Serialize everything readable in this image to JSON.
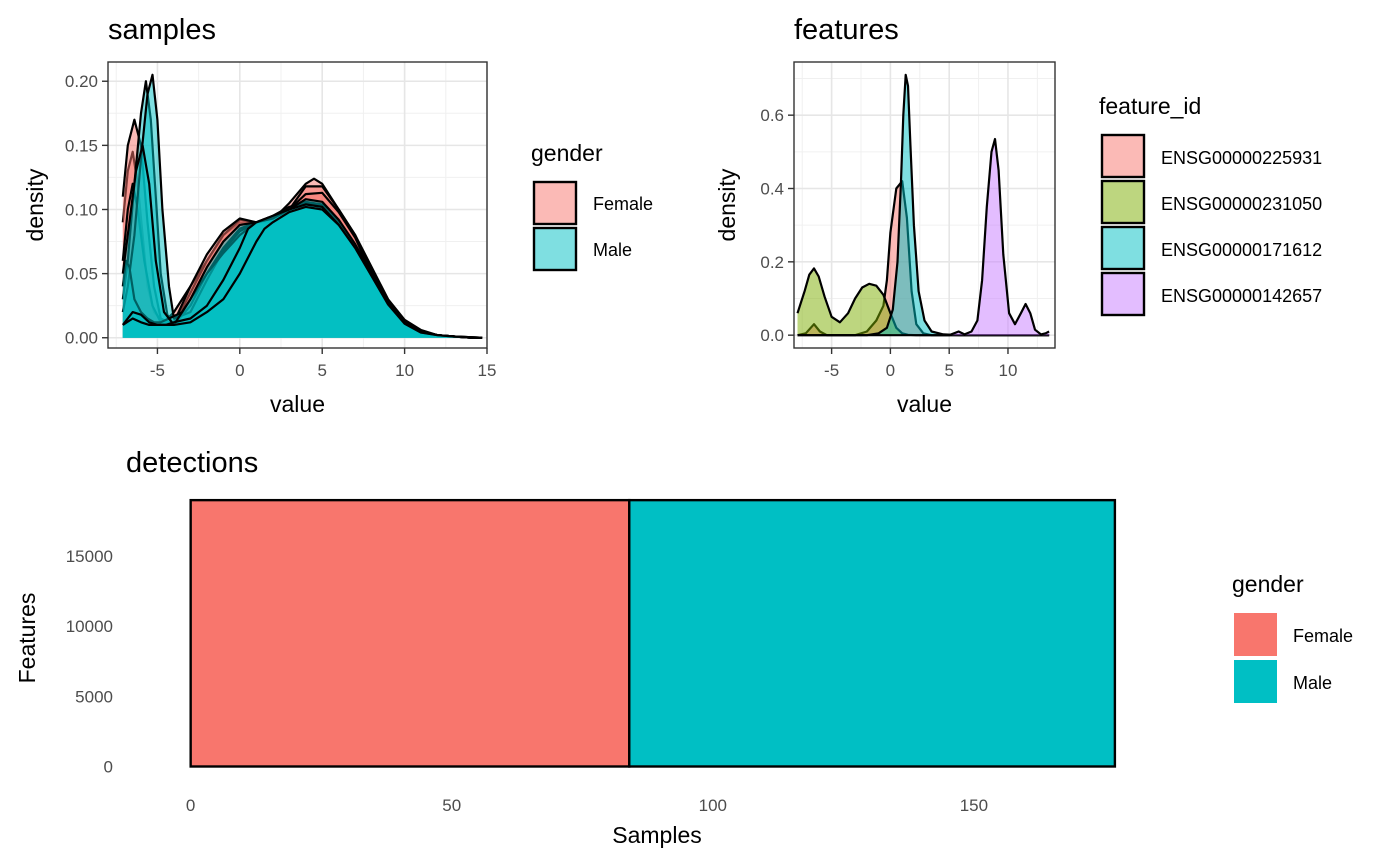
{
  "chart_data": [
    {
      "id": "samples",
      "type": "area",
      "title": "samples",
      "xlabel": "value",
      "ylabel": "density",
      "xlim": [
        -8,
        15
      ],
      "ylim": [
        -0.008,
        0.215
      ],
      "xticks": [
        -5,
        0,
        5,
        10,
        15
      ],
      "yticks": [
        0.0,
        0.05,
        0.1,
        0.15,
        0.2
      ],
      "ytick_labels": [
        "0.00",
        "0.05",
        "0.10",
        "0.15",
        "0.20"
      ],
      "grid": true,
      "legend": {
        "title": "gender",
        "placement": "right",
        "entries": [
          "Female",
          "Male"
        ]
      },
      "series": [
        {
          "group": "Female",
          "x": [
            -7.1,
            -6.8,
            -6.5,
            -6.2,
            -5.9,
            -5.6,
            -5.2,
            -4.6,
            -4,
            -3,
            -2,
            -1,
            0,
            1,
            2,
            3,
            4,
            4.5,
            5,
            6,
            7,
            8,
            9,
            10,
            11,
            12,
            13,
            14,
            14.7
          ],
          "y": [
            0.09,
            0.13,
            0.145,
            0.12,
            0.08,
            0.04,
            0.02,
            0.012,
            0.02,
            0.04,
            0.06,
            0.08,
            0.09,
            0.089,
            0.092,
            0.105,
            0.12,
            0.124,
            0.12,
            0.1,
            0.08,
            0.055,
            0.03,
            0.014,
            0.006,
            0.002,
            0.001,
            0,
            0
          ]
        },
        {
          "group": "Female",
          "x": [
            -7.1,
            -6.8,
            -6.4,
            -6,
            -5.6,
            -5.2,
            -4.8,
            -4,
            -3,
            -2,
            -1,
            0,
            1,
            2,
            3,
            4,
            5,
            6,
            7,
            8,
            9,
            10,
            11,
            12,
            13,
            14,
            14.7
          ],
          "y": [
            0.11,
            0.15,
            0.17,
            0.15,
            0.09,
            0.04,
            0.015,
            0.01,
            0.035,
            0.06,
            0.08,
            0.092,
            0.09,
            0.09,
            0.1,
            0.118,
            0.118,
            0.1,
            0.08,
            0.052,
            0.028,
            0.012,
            0.005,
            0.002,
            0.001,
            0,
            0
          ]
        },
        {
          "group": "Female",
          "x": [
            -7.1,
            -6.8,
            -6.5,
            -6.2,
            -5.8,
            -5.3,
            -4.8,
            -4,
            -3,
            -2,
            -1,
            0,
            1,
            2,
            3,
            4,
            5,
            6,
            7,
            8,
            9,
            10,
            11,
            12,
            13,
            14.7
          ],
          "y": [
            0.06,
            0.1,
            0.12,
            0.1,
            0.06,
            0.025,
            0.012,
            0.012,
            0.04,
            0.065,
            0.083,
            0.093,
            0.09,
            0.09,
            0.1,
            0.112,
            0.113,
            0.098,
            0.078,
            0.05,
            0.026,
            0.011,
            0.004,
            0.002,
            0.001,
            0
          ]
        },
        {
          "group": "Male",
          "x": [
            -7.1,
            -6.8,
            -6.4,
            -6,
            -5.7,
            -5.4,
            -5.1,
            -4.8,
            -4.4,
            -4,
            -3,
            -2,
            -1,
            0,
            1,
            2,
            3,
            4,
            5,
            6,
            7,
            8,
            9,
            10,
            11,
            12,
            13,
            14,
            14.7
          ],
          "y": [
            0.03,
            0.06,
            0.12,
            0.175,
            0.2,
            0.17,
            0.11,
            0.05,
            0.018,
            0.01,
            0.025,
            0.05,
            0.07,
            0.085,
            0.09,
            0.095,
            0.102,
            0.106,
            0.104,
            0.09,
            0.072,
            0.05,
            0.028,
            0.012,
            0.005,
            0.002,
            0.001,
            0,
            0
          ]
        },
        {
          "group": "Male",
          "x": [
            -7.1,
            -6.8,
            -6.4,
            -6,
            -5.6,
            -5.3,
            -5,
            -4.7,
            -4.3,
            -4,
            -3,
            -2,
            -1,
            0,
            1,
            2,
            3,
            4,
            5,
            6,
            7,
            8,
            9,
            10,
            11,
            12,
            13,
            14,
            14.7
          ],
          "y": [
            0.02,
            0.04,
            0.08,
            0.14,
            0.19,
            0.205,
            0.17,
            0.1,
            0.04,
            0.015,
            0.02,
            0.045,
            0.068,
            0.083,
            0.09,
            0.094,
            0.1,
            0.105,
            0.103,
            0.09,
            0.071,
            0.05,
            0.028,
            0.012,
            0.005,
            0.002,
            0.001,
            0,
            0
          ]
        },
        {
          "group": "Male",
          "x": [
            -7.1,
            -6.9,
            -6.7,
            -6.4,
            -6,
            -5.6,
            -5.2,
            -4.8,
            -4.3,
            -3.5,
            -3,
            -2,
            -1,
            0,
            1,
            2,
            3,
            4,
            5,
            6,
            7,
            8,
            9,
            10,
            11,
            12,
            13,
            14,
            14.7
          ],
          "y": [
            0.04,
            0.06,
            0.055,
            0.03,
            0.02,
            0.015,
            0.012,
            0.012,
            0.015,
            0.02,
            0.03,
            0.05,
            0.066,
            0.08,
            0.09,
            0.095,
            0.1,
            0.104,
            0.102,
            0.09,
            0.072,
            0.05,
            0.028,
            0.012,
            0.005,
            0.002,
            0.001,
            0,
            0
          ]
        },
        {
          "group": "Male",
          "x": [
            -7.1,
            -6.7,
            -6.3,
            -5.9,
            -5.5,
            -5.1,
            -4.6,
            -4,
            -3,
            -2,
            -1,
            0,
            1,
            2,
            3,
            4,
            5,
            6,
            7,
            8,
            9,
            10,
            11,
            12,
            13,
            14,
            14.7
          ],
          "y": [
            0.05,
            0.09,
            0.13,
            0.15,
            0.12,
            0.06,
            0.02,
            0.01,
            0.03,
            0.055,
            0.075,
            0.088,
            0.09,
            0.093,
            0.1,
            0.108,
            0.106,
            0.092,
            0.073,
            0.05,
            0.027,
            0.012,
            0.005,
            0.002,
            0.001,
            0,
            0
          ]
        },
        {
          "group": "Male",
          "x": [
            -7.1,
            -6.5,
            -6,
            -5.5,
            -5,
            -4.5,
            -4,
            -3,
            -2,
            -1,
            0,
            0.5,
            1,
            2,
            3,
            4,
            5,
            6,
            7,
            8,
            9,
            10,
            11,
            12,
            13,
            14.7
          ],
          "y": [
            0.01,
            0.02,
            0.018,
            0.012,
            0.01,
            0.01,
            0.012,
            0.015,
            0.025,
            0.045,
            0.07,
            0.085,
            0.09,
            0.095,
            0.1,
            0.104,
            0.102,
            0.088,
            0.07,
            0.048,
            0.026,
            0.011,
            0.004,
            0.002,
            0.001,
            0
          ]
        },
        {
          "group": "Male",
          "x": [
            -7.1,
            -6.5,
            -6,
            -5.5,
            -5,
            -4.5,
            -4,
            -3,
            -2,
            -1,
            0,
            1,
            1.5,
            2,
            3,
            4,
            5,
            6,
            7,
            8,
            9,
            10,
            11,
            12,
            13,
            14.7
          ],
          "y": [
            0.01,
            0.015,
            0.012,
            0.01,
            0.01,
            0.01,
            0.01,
            0.012,
            0.02,
            0.03,
            0.05,
            0.075,
            0.085,
            0.09,
            0.098,
            0.102,
            0.1,
            0.088,
            0.07,
            0.048,
            0.026,
            0.011,
            0.004,
            0.002,
            0.001,
            0
          ]
        }
      ]
    },
    {
      "id": "features",
      "type": "area",
      "title": "features",
      "xlabel": "value",
      "ylabel": "density",
      "xlim": [
        -8.2,
        14
      ],
      "ylim": [
        -0.035,
        0.745
      ],
      "xticks": [
        -5,
        0,
        5,
        10
      ],
      "yticks": [
        0.0,
        0.2,
        0.4,
        0.6
      ],
      "ytick_labels": [
        "0.0",
        "0.2",
        "0.4",
        "0.6"
      ],
      "grid": true,
      "legend": {
        "title": "feature_id",
        "placement": "right",
        "entries": [
          "ENSG00000225931",
          "ENSG00000231050",
          "ENSG00000171612",
          "ENSG00000142657"
        ]
      },
      "series": [
        {
          "name": "ENSG00000225931",
          "x": [
            -7.9,
            -7.2,
            -6.5,
            -6,
            -5.4,
            -4.5,
            -3,
            -2,
            -1.2,
            -0.6,
            -0.3,
            0,
            0.5,
            1,
            1.4,
            1.8,
            2.2,
            2.8,
            3.5,
            4.5,
            6,
            8,
            10,
            12,
            13.5
          ],
          "y": [
            0,
            0.005,
            0.03,
            0.01,
            0,
            0,
            0,
            0.01,
            0.04,
            0.08,
            0.15,
            0.28,
            0.4,
            0.42,
            0.32,
            0.12,
            0.03,
            0.005,
            0,
            0,
            0,
            0,
            0,
            0,
            0
          ]
        },
        {
          "name": "ENSG00000231050",
          "x": [
            -7.9,
            -7.3,
            -6.9,
            -6.5,
            -6.1,
            -5.6,
            -5,
            -4.3,
            -3.6,
            -3,
            -2.4,
            -1.8,
            -1.2,
            -0.6,
            0,
            0.5,
            1,
            1.5,
            2.2,
            3,
            4.5,
            6,
            8,
            10,
            12,
            13.5
          ],
          "y": [
            0.06,
            0.12,
            0.165,
            0.182,
            0.16,
            0.105,
            0.05,
            0.035,
            0.06,
            0.1,
            0.13,
            0.14,
            0.135,
            0.11,
            0.06,
            0.02,
            0.005,
            0.001,
            0,
            0,
            0,
            0,
            0,
            0,
            0,
            0
          ]
        },
        {
          "name": "ENSG00000171612",
          "x": [
            -7.9,
            -6,
            -4,
            -2,
            -1,
            -0.3,
            0.2,
            0.6,
            0.9,
            1.1,
            1.3,
            1.5,
            1.7,
            2,
            2.4,
            2.9,
            3.5,
            4.5,
            6,
            8,
            10,
            12,
            13.5
          ],
          "y": [
            0,
            0,
            0,
            0,
            0.005,
            0.02,
            0.07,
            0.2,
            0.42,
            0.6,
            0.71,
            0.68,
            0.52,
            0.3,
            0.12,
            0.04,
            0.01,
            0.002,
            0,
            0,
            0,
            0,
            0
          ]
        },
        {
          "name": "ENSG00000142657",
          "x": [
            -7.9,
            -4,
            0,
            3,
            5,
            5.8,
            6.3,
            6.9,
            7.4,
            7.8,
            8.2,
            8.6,
            8.9,
            9.2,
            9.6,
            10.1,
            10.6,
            11.1,
            11.5,
            11.9,
            12.3,
            12.8,
            13.2,
            13.5
          ],
          "y": [
            0,
            0,
            0,
            0,
            0,
            0.01,
            0.002,
            0.01,
            0.04,
            0.15,
            0.35,
            0.5,
            0.535,
            0.45,
            0.22,
            0.06,
            0.03,
            0.06,
            0.085,
            0.06,
            0.015,
            0.002,
            0.005,
            0.01
          ]
        }
      ]
    },
    {
      "id": "detections",
      "type": "bar",
      "title": "detections",
      "xlabel": "Samples",
      "ylabel": "Features",
      "xlim": [
        -3,
        182
      ],
      "ylim": [
        -250,
        19000
      ],
      "xticks": [
        0,
        50,
        100,
        150
      ],
      "yticks": [
        0,
        5000,
        10000,
        15000
      ],
      "grid": false,
      "legend": {
        "title": "gender",
        "placement": "right",
        "entries": [
          "Female",
          "Male"
        ]
      },
      "bars": [
        {
          "group": "Female",
          "x_start": 0,
          "x_end": 84,
          "value": 18990
        },
        {
          "group": "Male",
          "x_start": 84,
          "x_end": 177,
          "value": 18990
        }
      ]
    }
  ],
  "colors": {
    "Female": "#F8766D",
    "Male": "#00BFC4",
    "ENSG00000225931": "#F8766D",
    "ENSG00000231050": "#7CAE00",
    "ENSG00000171612": "#00BFC4",
    "ENSG00000142657": "#C77CFF"
  }
}
